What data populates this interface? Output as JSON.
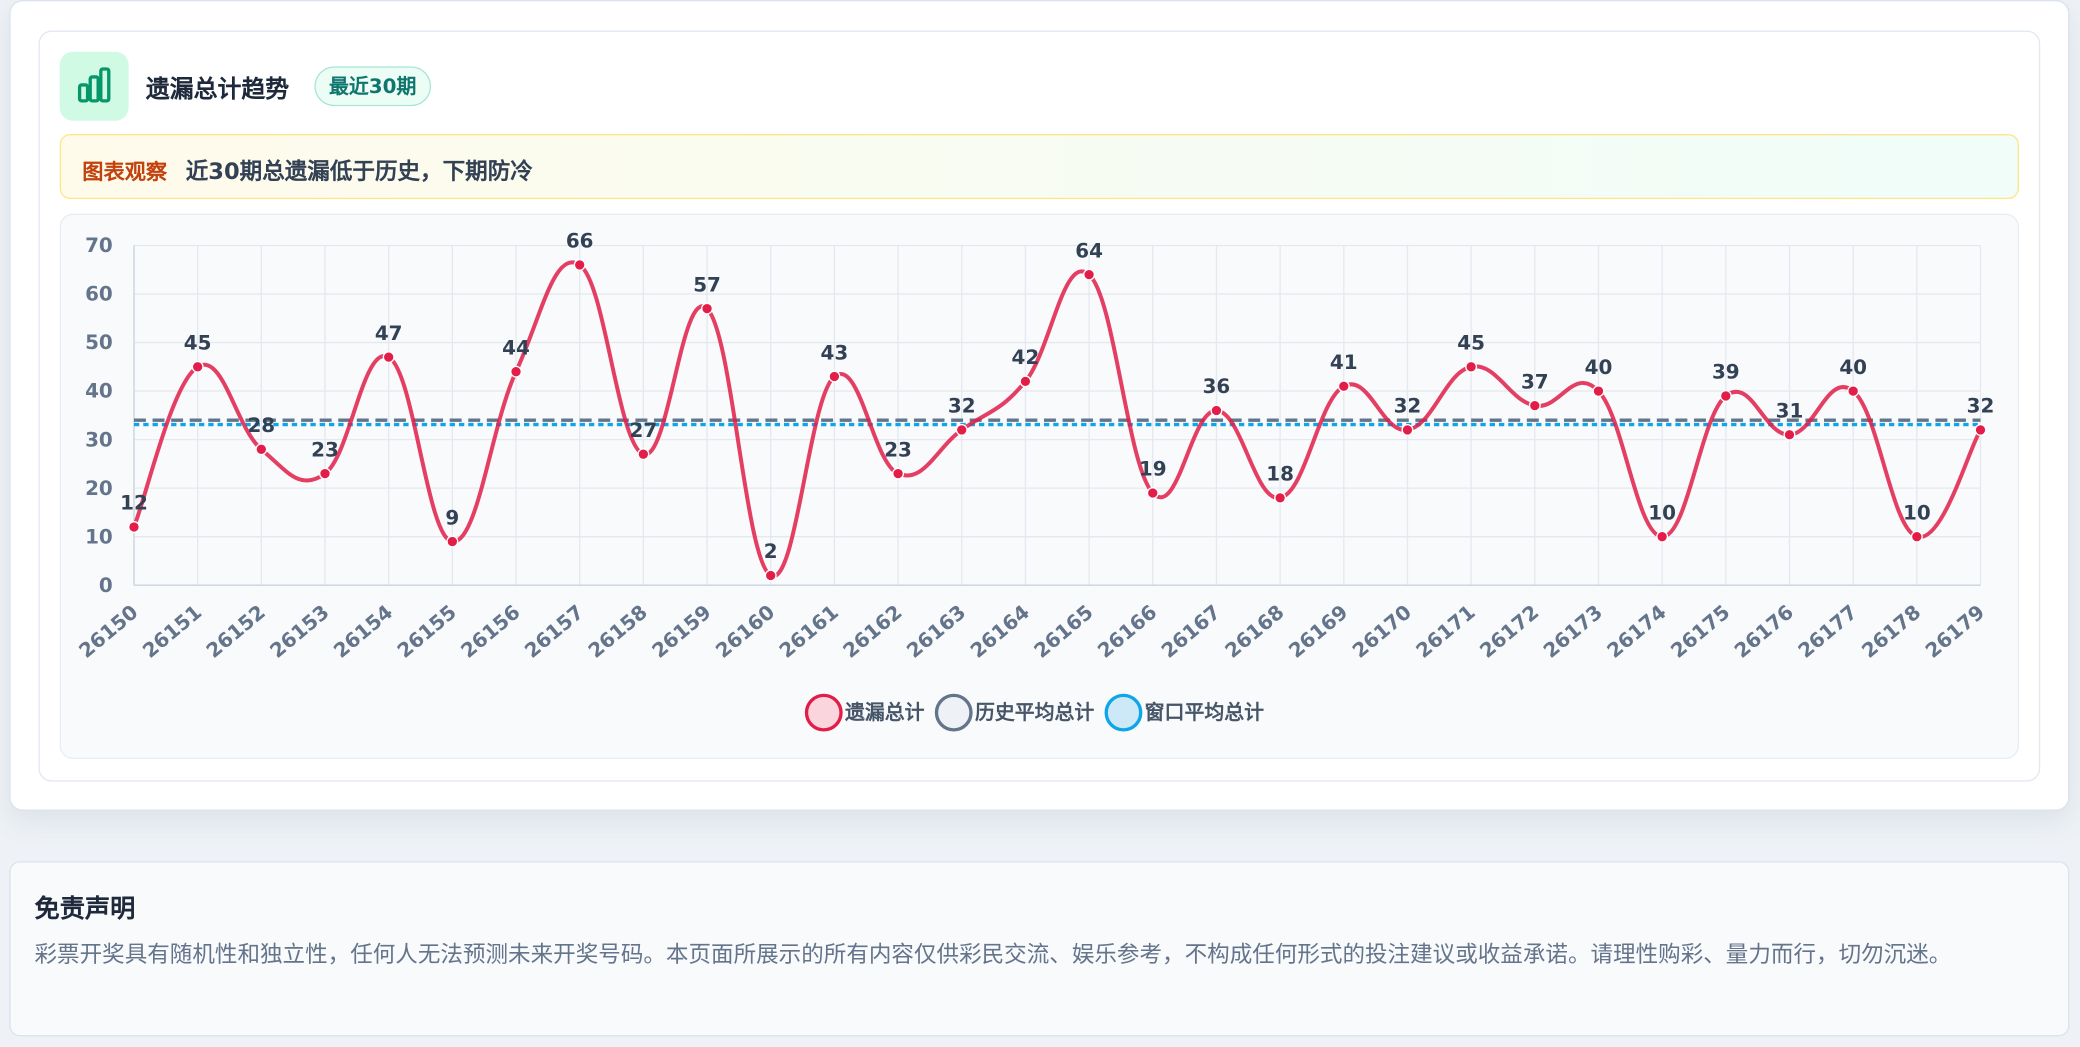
{
  "panel": {
    "title": "遗漏总计趋势",
    "badge": "最近30期",
    "insight_label": "图表观察",
    "insight_text": "近30期总遗漏低于历史，下期防冷"
  },
  "chart_data": {
    "type": "line",
    "categories": [
      "26150",
      "26151",
      "26152",
      "26153",
      "26154",
      "26155",
      "26156",
      "26157",
      "26158",
      "26159",
      "26160",
      "26161",
      "26162",
      "26163",
      "26164",
      "26165",
      "26166",
      "26167",
      "26168",
      "26169",
      "26170",
      "26171",
      "26172",
      "26173",
      "26174",
      "26175",
      "26176",
      "26177",
      "26178",
      "26179"
    ],
    "series": [
      {
        "name": "遗漏总计",
        "color": "#e11d48",
        "values": [
          12,
          45,
          28,
          23,
          47,
          9,
          44,
          66,
          27,
          57,
          2,
          43,
          23,
          32,
          42,
          64,
          19,
          36,
          18,
          41,
          32,
          45,
          37,
          40,
          10,
          39,
          31,
          40,
          10,
          32
        ]
      }
    ],
    "reference_lines": [
      {
        "name": "历史平均总计",
        "color": "#64748b",
        "value": 34
      },
      {
        "name": "窗口平均总计",
        "color": "#0ea5e9",
        "value": 33.1
      }
    ],
    "ylim": [
      0,
      70
    ],
    "yticks": [
      0,
      10,
      20,
      30,
      40,
      50,
      60,
      70
    ],
    "grid": true
  },
  "disclaimer": {
    "title": "免责声明",
    "text": "彩票开奖具有随机性和独立性，任何人无法预测未来开奖号码。本页面所展示的所有内容仅供彩民交流、娱乐参考，不构成任何形式的投注建议或收益承诺。请理性购彩、量力而行，切勿沉迷。"
  }
}
